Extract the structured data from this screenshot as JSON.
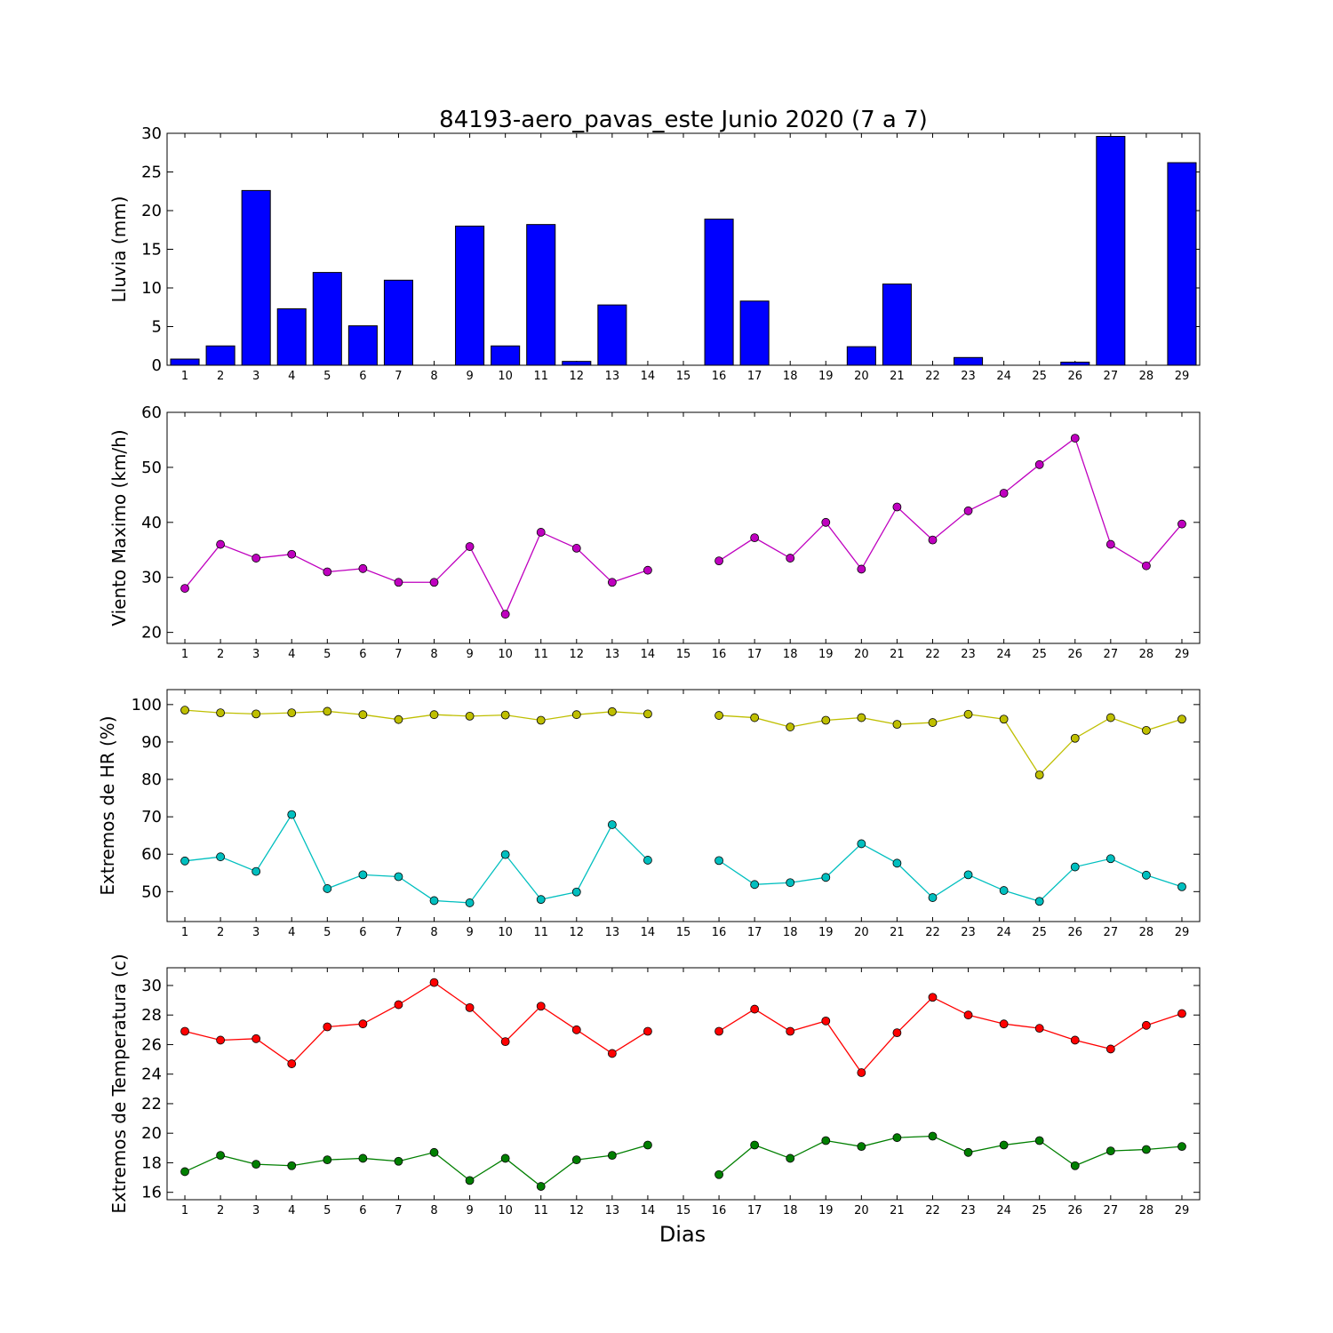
{
  "chart_data": [
    {
      "type": "bar",
      "title": "84193-aero_pavas_este Junio 2020  (7 a 7)",
      "ylabel": "Lluvia (mm)",
      "ylim": [
        0,
        30
      ],
      "yticks": [
        0,
        5,
        10,
        15,
        20,
        25,
        30
      ],
      "x": [
        1,
        2,
        3,
        4,
        5,
        6,
        7,
        8,
        9,
        10,
        11,
        12,
        13,
        14,
        15,
        16,
        17,
        18,
        19,
        20,
        21,
        22,
        23,
        24,
        25,
        26,
        27,
        28,
        29
      ],
      "values": [
        0.8,
        2.5,
        22.6,
        7.3,
        12.0,
        5.1,
        11.0,
        0,
        18.0,
        2.5,
        18.2,
        0.5,
        7.8,
        0,
        0,
        18.9,
        8.3,
        0,
        0,
        2.4,
        10.5,
        0,
        1.0,
        0,
        0,
        0.4,
        29.6,
        0,
        26.2
      ],
      "colors": {
        "bar": "#0000ff"
      }
    },
    {
      "type": "line",
      "ylabel": "Viento Maximo (km/h)",
      "ylim": [
        18,
        60
      ],
      "yticks": [
        20,
        30,
        40,
        50,
        60
      ],
      "x": [
        1,
        2,
        3,
        4,
        5,
        6,
        7,
        8,
        9,
        10,
        11,
        12,
        13,
        14,
        15,
        16,
        17,
        18,
        19,
        20,
        21,
        22,
        23,
        24,
        25,
        26,
        27,
        28,
        29
      ],
      "series": [
        {
          "color": "#bf00bf",
          "values": [
            28.0,
            36.0,
            33.5,
            34.2,
            31.0,
            31.6,
            29.1,
            29.1,
            35.6,
            23.3,
            38.2,
            35.3,
            29.1,
            31.3,
            null,
            33.0,
            37.2,
            33.5,
            40.0,
            31.5,
            42.8,
            36.8,
            42.1,
            45.3,
            50.5,
            55.3,
            36.0,
            32.1,
            39.7
          ]
        }
      ]
    },
    {
      "type": "line",
      "ylabel": "Extremos de HR (%)",
      "ylim": [
        42,
        104
      ],
      "yticks": [
        50,
        60,
        70,
        80,
        90,
        100
      ],
      "x": [
        1,
        2,
        3,
        4,
        5,
        6,
        7,
        8,
        9,
        10,
        11,
        12,
        13,
        14,
        15,
        16,
        17,
        18,
        19,
        20,
        21,
        22,
        23,
        24,
        25,
        26,
        27,
        28,
        29
      ],
      "series": [
        {
          "color": "#bfbf00",
          "values": [
            98.5,
            97.8,
            97.5,
            97.8,
            98.2,
            97.3,
            96.0,
            97.3,
            96.9,
            97.2,
            95.8,
            97.3,
            98.1,
            97.5,
            null,
            97.1,
            96.5,
            94.0,
            95.8,
            96.5,
            94.7,
            95.2,
            97.4,
            96.1,
            81.2,
            91.0,
            96.5,
            93.1,
            96.1
          ]
        },
        {
          "color": "#00bfbf",
          "values": [
            58.2,
            59.3,
            55.4,
            70.6,
            50.8,
            54.5,
            54.0,
            47.6,
            47.0,
            59.9,
            47.9,
            49.9,
            67.9,
            58.4,
            null,
            58.3,
            51.9,
            52.4,
            53.8,
            62.8,
            57.6,
            48.4,
            54.5,
            50.3,
            47.4,
            56.6,
            58.8,
            54.4,
            51.3
          ]
        }
      ]
    },
    {
      "type": "line",
      "ylabel": "Extremos de Temperatura (c)",
      "xlabel": "Dias",
      "ylim": [
        15.5,
        31.2
      ],
      "yticks": [
        16,
        18,
        20,
        22,
        24,
        26,
        28,
        30
      ],
      "x": [
        1,
        2,
        3,
        4,
        5,
        6,
        7,
        8,
        9,
        10,
        11,
        12,
        13,
        14,
        15,
        16,
        17,
        18,
        19,
        20,
        21,
        22,
        23,
        24,
        25,
        26,
        27,
        28,
        29
      ],
      "series": [
        {
          "color": "#ff0000",
          "values": [
            26.9,
            26.3,
            26.4,
            24.7,
            27.2,
            27.4,
            28.7,
            30.2,
            28.5,
            26.2,
            28.6,
            27.0,
            25.4,
            26.9,
            null,
            26.9,
            28.4,
            26.9,
            27.6,
            24.1,
            26.8,
            29.2,
            28.0,
            27.4,
            27.1,
            26.3,
            25.7,
            27.3,
            28.1
          ]
        },
        {
          "color": "#007f00",
          "values": [
            17.4,
            18.5,
            17.9,
            17.8,
            18.2,
            18.3,
            18.1,
            18.7,
            16.8,
            18.3,
            16.4,
            18.2,
            18.5,
            19.2,
            null,
            17.2,
            19.2,
            18.3,
            19.5,
            19.1,
            19.7,
            19.8,
            18.7,
            19.2,
            19.5,
            17.8,
            18.8,
            18.9,
            19.1
          ]
        }
      ]
    }
  ]
}
